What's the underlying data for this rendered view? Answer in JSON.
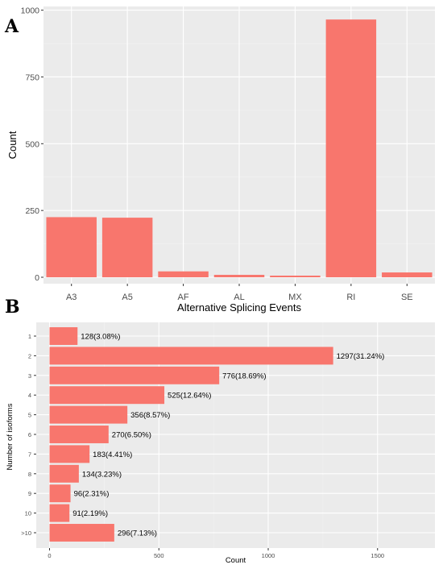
{
  "colors": {
    "bar": "#f8766d",
    "panel_bg": "#ebebeb",
    "grid_major": "#ffffff",
    "grid_minor": "#f4f4f4"
  },
  "chart_data": [
    {
      "panel": "A",
      "type": "bar",
      "orientation": "vertical",
      "categories": [
        "A3",
        "A5",
        "AF",
        "AL",
        "MX",
        "RI",
        "SE"
      ],
      "values": [
        225,
        223,
        22,
        9,
        6,
        965,
        18
      ],
      "xlabel": "Alternative Splicing Events",
      "ylabel": "Count",
      "ylim": [
        0,
        1000
      ],
      "yticks": [
        "0",
        "250",
        "500",
        "750",
        "1000"
      ],
      "grid": true
    },
    {
      "panel": "B",
      "type": "bar",
      "orientation": "horizontal",
      "categories": [
        "1",
        "2",
        "3",
        "4",
        "5",
        "6",
        "7",
        "8",
        "9",
        "10",
        ">10"
      ],
      "values": [
        128,
        1297,
        776,
        525,
        356,
        270,
        183,
        134,
        96,
        91,
        296
      ],
      "labels": [
        "128(3.08%)",
        "1297(31.24%)",
        "776(18.69%)",
        "525(12.64%)",
        "356(8.57%)",
        "270(6.50%)",
        "183(4.41%)",
        "134(3.23%)",
        "96(2.31%)",
        "91(2.19%)",
        "296(7.13%)"
      ],
      "xlabel": "Count",
      "ylabel": "Number of isoforms",
      "xlim": [
        0,
        1750
      ],
      "xticks": [
        "0",
        "500",
        "1000",
        "1500"
      ],
      "grid": true
    }
  ]
}
